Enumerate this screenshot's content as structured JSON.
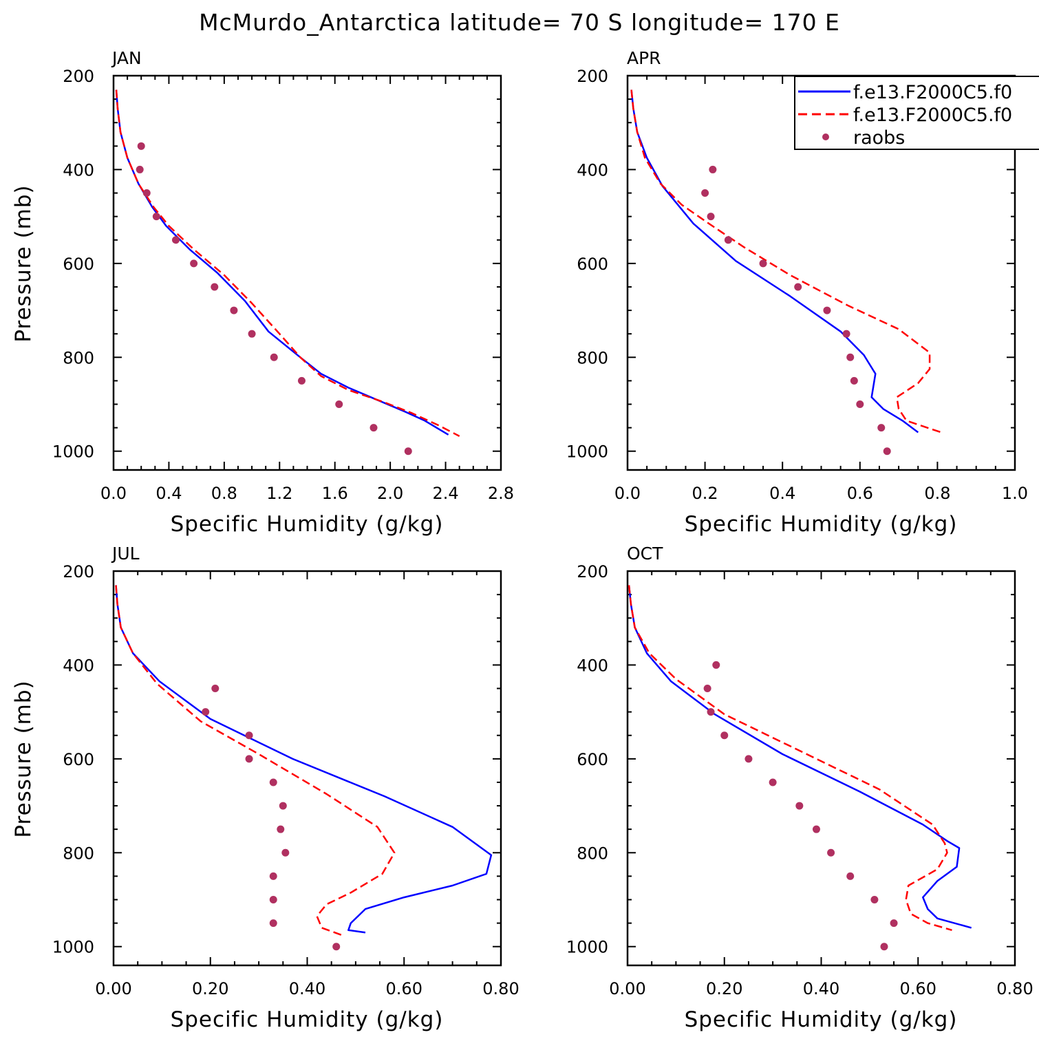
{
  "chart_data": {
    "title": "McMurdo_Antarctica  latitude= 70 S longitude= 170 E",
    "series_styles": [
      {
        "key": "model_a",
        "color": "#0000ff",
        "dash": "solid"
      },
      {
        "key": "model_b",
        "color": "#ff0000",
        "dash": "dashed"
      },
      {
        "key": "raobs",
        "color": "#b03060",
        "marker": "dot"
      }
    ],
    "legend": {
      "placement": "top-right of APR panel",
      "entries": [
        "f.e13.F2000C5.f0",
        "f.e13.F2000C5.f0",
        "raobs"
      ]
    },
    "panels": [
      {
        "type": "line",
        "label": "JAN",
        "xlabel": "Specific Humidity (g/kg)",
        "ylabel": "Pressure (mb)",
        "xlim": [
          0,
          2.8
        ],
        "xticks": [
          0.0,
          0.4,
          0.8,
          1.2,
          1.6,
          2.0,
          2.4,
          2.8
        ],
        "xtick_labels": [
          "0.0",
          "0.4",
          "0.8",
          "1.2",
          "1.6",
          "2.0",
          "2.4",
          "2.8"
        ],
        "ylim": [
          200,
          1000
        ],
        "yticks": [
          200,
          400,
          600,
          800,
          1000
        ],
        "ytick_labels": [
          "200",
          "400",
          "600",
          "800",
          "1000"
        ],
        "model_a": {
          "q": [
            0.02,
            0.03,
            0.05,
            0.1,
            0.18,
            0.28,
            0.38,
            0.55,
            0.75,
            0.95,
            1.12,
            1.35,
            1.5,
            1.7,
            1.9,
            2.1,
            2.25,
            2.42
          ],
          "p": [
            230,
            270,
            320,
            375,
            430,
            480,
            520,
            570,
            620,
            680,
            745,
            800,
            835,
            865,
            890,
            915,
            935,
            965
          ]
        },
        "model_b": {
          "q": [
            0.02,
            0.03,
            0.05,
            0.1,
            0.18,
            0.29,
            0.4,
            0.58,
            0.8,
            1.0,
            1.2,
            1.35,
            1.5,
            1.7,
            1.95,
            2.15,
            2.35,
            2.5
          ],
          "p": [
            230,
            270,
            320,
            375,
            430,
            480,
            520,
            570,
            625,
            685,
            750,
            800,
            840,
            870,
            895,
            918,
            945,
            968
          ]
        },
        "raobs": {
          "q": [
            0.2,
            0.19,
            0.24,
            0.31,
            0.45,
            0.58,
            0.73,
            0.87,
            1.0,
            1.16,
            1.36,
            1.63,
            1.88,
            2.13
          ],
          "p": [
            350,
            400,
            450,
            500,
            550,
            600,
            650,
            700,
            750,
            800,
            850,
            900,
            950,
            1000
          ]
        }
      },
      {
        "type": "line",
        "label": "APR",
        "xlabel": "Specific Humidity (g/kg)",
        "ylabel": "",
        "xlim": [
          0,
          1.0
        ],
        "xticks": [
          0.0,
          0.2,
          0.4,
          0.6,
          0.8,
          1.0
        ],
        "xtick_labels": [
          "0.0",
          "0.2",
          "0.4",
          "0.6",
          "0.8",
          "1.0"
        ],
        "ylim": [
          200,
          1000
        ],
        "yticks": [
          200,
          400,
          600,
          800,
          1000
        ],
        "ytick_labels": [
          "200",
          "400",
          "600",
          "800",
          "1000"
        ],
        "model_a": {
          "q": [
            0.01,
            0.015,
            0.025,
            0.05,
            0.09,
            0.17,
            0.28,
            0.42,
            0.55,
            0.61,
            0.64,
            0.63,
            0.66,
            0.71,
            0.75
          ],
          "p": [
            230,
            270,
            320,
            375,
            435,
            515,
            595,
            670,
            745,
            795,
            835,
            885,
            910,
            935,
            960
          ]
        },
        "model_b": {
          "q": [
            0.01,
            0.015,
            0.025,
            0.045,
            0.085,
            0.14,
            0.21,
            0.3,
            0.42,
            0.57,
            0.7,
            0.78,
            0.78,
            0.75,
            0.695,
            0.7,
            0.72,
            0.81
          ],
          "p": [
            230,
            270,
            320,
            375,
            430,
            475,
            515,
            565,
            625,
            690,
            740,
            790,
            825,
            855,
            885,
            910,
            935,
            960
          ]
        },
        "raobs": {
          "q": [
            0.22,
            0.2,
            0.215,
            0.26,
            0.35,
            0.44,
            0.515,
            0.565,
            0.575,
            0.585,
            0.6,
            0.655,
            0.67
          ],
          "p": [
            400,
            450,
            500,
            550,
            600,
            650,
            700,
            750,
            800,
            850,
            900,
            950,
            1000
          ]
        }
      },
      {
        "type": "line",
        "label": "JUL",
        "xlabel": "Specific Humidity (g/kg)",
        "ylabel": "Pressure (mb)",
        "xlim": [
          0,
          0.8
        ],
        "xticks": [
          0.0,
          0.2,
          0.4,
          0.6,
          0.8
        ],
        "xtick_labels": [
          "0.00",
          "0.20",
          "0.40",
          "0.60",
          "0.80"
        ],
        "ylim": [
          200,
          1000
        ],
        "yticks": [
          200,
          400,
          600,
          800,
          1000
        ],
        "ytick_labels": [
          "200",
          "400",
          "600",
          "800",
          "1000"
        ],
        "model_a": {
          "q": [
            0.005,
            0.008,
            0.015,
            0.04,
            0.095,
            0.2,
            0.37,
            0.56,
            0.7,
            0.78,
            0.77,
            0.7,
            0.6,
            0.52,
            0.49,
            0.485,
            0.52
          ],
          "p": [
            230,
            270,
            320,
            375,
            435,
            515,
            600,
            680,
            745,
            805,
            845,
            870,
            895,
            920,
            950,
            965,
            970
          ]
        },
        "model_b": {
          "q": [
            0.005,
            0.008,
            0.015,
            0.04,
            0.09,
            0.18,
            0.3,
            0.44,
            0.545,
            0.58,
            0.555,
            0.49,
            0.44,
            0.42,
            0.43,
            0.47
          ],
          "p": [
            230,
            270,
            320,
            375,
            440,
            520,
            590,
            675,
            745,
            800,
            845,
            885,
            910,
            935,
            960,
            975
          ]
        },
        "raobs": {
          "q": [
            0.21,
            0.19,
            0.28,
            0.28,
            0.33,
            0.35,
            0.345,
            0.355,
            0.33,
            0.33,
            0.33,
            0.46
          ],
          "p": [
            450,
            500,
            550,
            600,
            650,
            700,
            750,
            800,
            850,
            900,
            950,
            1000
          ]
        }
      },
      {
        "type": "line",
        "label": "OCT",
        "xlabel": "Specific Humidity (g/kg)",
        "ylabel": "",
        "xlim": [
          0,
          0.8
        ],
        "xticks": [
          0.0,
          0.2,
          0.4,
          0.6,
          0.8
        ],
        "xtick_labels": [
          "0.00",
          "0.20",
          "0.40",
          "0.60",
          "0.80"
        ],
        "ylim": [
          200,
          1000
        ],
        "yticks": [
          200,
          400,
          600,
          800,
          1000
        ],
        "ytick_labels": [
          "200",
          "400",
          "600",
          "800",
          "1000"
        ],
        "model_a": {
          "q": [
            0.003,
            0.007,
            0.015,
            0.04,
            0.09,
            0.18,
            0.32,
            0.48,
            0.61,
            0.66,
            0.685,
            0.68,
            0.64,
            0.61,
            0.62,
            0.64,
            0.71
          ],
          "p": [
            230,
            270,
            320,
            375,
            435,
            505,
            590,
            670,
            740,
            775,
            790,
            830,
            860,
            895,
            920,
            940,
            960
          ]
        },
        "model_b": {
          "q": [
            0.003,
            0.007,
            0.015,
            0.045,
            0.1,
            0.2,
            0.34,
            0.52,
            0.63,
            0.655,
            0.66,
            0.64,
            0.58,
            0.575,
            0.585,
            0.62,
            0.67
          ],
          "p": [
            230,
            270,
            320,
            375,
            430,
            505,
            575,
            665,
            740,
            780,
            800,
            835,
            870,
            900,
            930,
            950,
            965
          ]
        },
        "raobs": {
          "q": [
            0.183,
            0.165,
            0.172,
            0.2,
            0.25,
            0.3,
            0.355,
            0.39,
            0.42,
            0.46,
            0.51,
            0.55,
            0.53
          ],
          "p": [
            400,
            450,
            500,
            550,
            600,
            650,
            700,
            750,
            800,
            850,
            900,
            950,
            1000
          ]
        }
      }
    ]
  }
}
